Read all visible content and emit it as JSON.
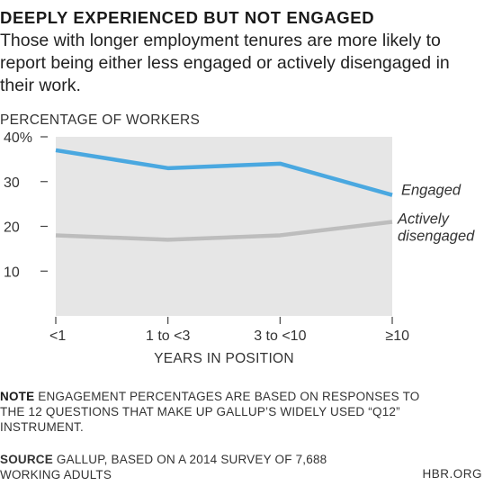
{
  "header": {
    "title": "DEEPLY EXPERIENCED BUT NOT ENGAGED",
    "subtitle": "Those with longer employment tenures are more likely to report being either less engaged or actively disengaged in their work."
  },
  "chart_data": {
    "type": "line",
    "categories": [
      "<1",
      "1 to <3",
      "3 to <10",
      "≥10"
    ],
    "series": [
      {
        "name": "Engaged",
        "values": [
          37,
          33,
          34,
          27
        ],
        "color": "#4aa8e0"
      },
      {
        "name": "Actively disengaged",
        "values": [
          18,
          17,
          18,
          21
        ],
        "color": "#bdbdbd"
      }
    ],
    "ylabel": "PERCENTAGE OF WORKERS",
    "xlabel": "YEARS IN POSITION",
    "ylim": [
      0,
      40
    ],
    "yticks": [
      "40%",
      "30",
      "20",
      "10"
    ],
    "ytick_values": [
      40,
      30,
      20,
      10
    ],
    "grid": false,
    "background": "#e6e6e6",
    "legend": "inline-right"
  },
  "footer": {
    "note_label": "NOTE",
    "note_text": " ENGAGEMENT PERCENTAGES ARE BASED ON RESPONSES TO THE 12 QUESTIONS THAT MAKE UP GALLUP’S WIDELY USED “Q12” INSTRUMENT.",
    "source_label": "SOURCE",
    "source_text": " GALLUP, BASED ON A 2014 SURVEY OF 7,688 WORKING ADULTS",
    "credit": "HBR.ORG"
  }
}
